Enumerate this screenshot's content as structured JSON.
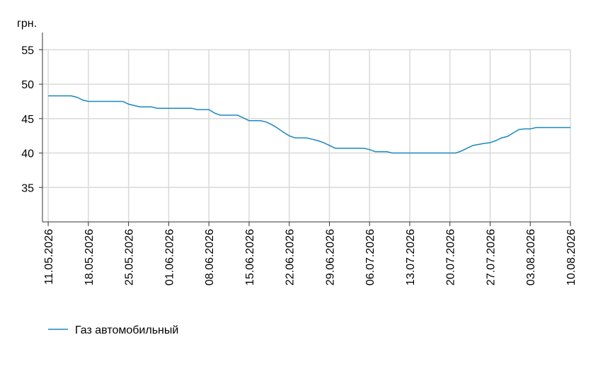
{
  "chart_data": {
    "type": "line",
    "y_label": "грн.",
    "x": [
      "11.05.2026",
      "15.05.2026",
      "16.05.2026",
      "17.05.2026",
      "18.05.2026",
      "24.05.2026",
      "25.05.2026",
      "27.05.2026",
      "29.05.2026",
      "30.05.2026",
      "05.06.2026",
      "06.06.2026",
      "08.06.2026",
      "09.06.2026",
      "10.06.2026",
      "13.06.2026",
      "14.06.2026",
      "15.06.2026",
      "17.06.2026",
      "18.06.2026",
      "19.06.2026",
      "20.06.2026",
      "21.06.2026",
      "22.06.2026",
      "23.06.2026",
      "25.06.2026",
      "26.06.2026",
      "27.06.2026",
      "28.06.2026",
      "29.06.2026",
      "30.06.2026",
      "05.07.2026",
      "06.07.2026",
      "07.07.2026",
      "09.07.2026",
      "10.07.2026",
      "20.07.2026",
      "21.07.2026",
      "22.07.2026",
      "23.07.2026",
      "24.07.2026",
      "26.07.2026",
      "27.07.2026",
      "28.07.2026",
      "29.07.2026",
      "30.07.2026",
      "31.07.2026",
      "01.08.2026",
      "02.08.2026",
      "03.08.2026",
      "04.08.2026",
      "10.08.2026"
    ],
    "series": [
      {
        "name": "Газ автомобильный",
        "color": "#1a87c1",
        "values": [
          48.3,
          48.3,
          48.1,
          47.7,
          47.5,
          47.5,
          47.1,
          46.7,
          46.7,
          46.5,
          46.5,
          46.3,
          46.3,
          45.8,
          45.5,
          45.5,
          45.1,
          44.7,
          44.7,
          44.5,
          44.1,
          43.6,
          43.0,
          42.5,
          42.2,
          42.2,
          42.0,
          41.8,
          41.5,
          41.1,
          40.7,
          40.7,
          40.5,
          40.2,
          40.2,
          40.0,
          40.0,
          40.0,
          40.3,
          40.7,
          41.1,
          41.4,
          41.5,
          41.8,
          42.2,
          42.4,
          42.9,
          43.4,
          43.5,
          43.5,
          43.7,
          43.7
        ]
      }
    ],
    "xlim": [
      "10.05.2026",
      "10.08.2026"
    ],
    "xticks": [
      "11.05.2026",
      "18.05.2026",
      "25.05.2026",
      "01.06.2026",
      "08.06.2026",
      "15.06.2026",
      "22.06.2026",
      "29.06.2026",
      "06.07.2026",
      "13.07.2026",
      "20.07.2026",
      "27.07.2026",
      "03.08.2026",
      "10.08.2026"
    ],
    "ylim": [
      30,
      57.5
    ],
    "yticks": [
      35,
      40,
      45,
      50,
      55
    ],
    "grid": true
  }
}
